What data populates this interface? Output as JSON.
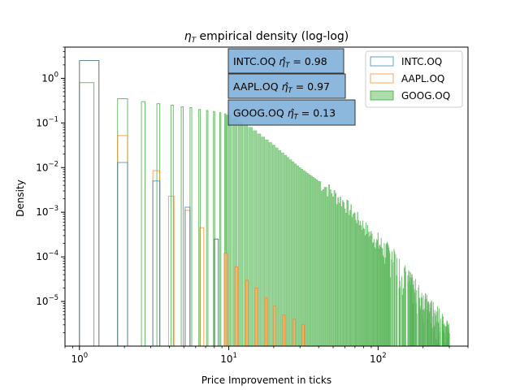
{
  "chart_data": {
    "type": "histogram",
    "title_main": "η",
    "title_sub": "T",
    "title_rest": " empirical density (log-log)",
    "xlabel": "Price Improvement in ticks",
    "ylabel": "Density",
    "xscale": "log",
    "yscale": "log",
    "xlim": [
      0.8,
      400
    ],
    "ylim": [
      1e-06,
      5
    ],
    "x_ticks": [
      {
        "value": 1,
        "base": "10",
        "exp": "0"
      },
      {
        "value": 10,
        "base": "10",
        "exp": "1"
      },
      {
        "value": 100,
        "base": "10",
        "exp": "2"
      }
    ],
    "y_ticks": [
      {
        "value": 1,
        "base": "10",
        "exp": "0"
      },
      {
        "value": 0.1,
        "base": "10",
        "exp": "−1"
      },
      {
        "value": 0.01,
        "base": "10",
        "exp": "−2"
      },
      {
        "value": 0.001,
        "base": "10",
        "exp": "−3"
      },
      {
        "value": 0.0001,
        "base": "10",
        "exp": "−4"
      },
      {
        "value": 1e-05,
        "base": "10",
        "exp": "−5"
      }
    ],
    "grid": false,
    "legend_position": "upper right",
    "series": [
      {
        "name": "INTC.OQ",
        "color": "#1f77b4",
        "style": "step outline",
        "bins": [
          {
            "x0": 1.0,
            "x1": 1.35,
            "y": 2.5
          },
          {
            "x0": 1.8,
            "x1": 2.1,
            "y": 0.013
          },
          {
            "x0": 3.1,
            "x1": 3.45,
            "y": 0.005
          },
          {
            "x0": 5.1,
            "x1": 5.5,
            "y": 0.0013
          },
          {
            "x0": 8.0,
            "x1": 8.5,
            "y": 0.00025
          }
        ]
      },
      {
        "name": "AAPL.OQ",
        "color": "#ff7f0e",
        "style": "step outline",
        "bins": [
          {
            "x0": 1.0,
            "x1": 1.35,
            "y": 2.5
          },
          {
            "x0": 1.8,
            "x1": 2.1,
            "y": 0.052
          },
          {
            "x0": 3.1,
            "x1": 3.45,
            "y": 0.0085
          },
          {
            "x0": 3.95,
            "x1": 4.3,
            "y": 0.0023
          },
          {
            "x0": 5.1,
            "x1": 5.5,
            "y": 0.0011
          },
          {
            "x0": 6.4,
            "x1": 6.8,
            "y": 0.00045
          },
          {
            "x0": 8.0,
            "x1": 8.5,
            "y": 0.00025
          },
          {
            "x0": 9.3,
            "x1": 9.8,
            "y": 0.00012
          },
          {
            "x0": 11.0,
            "x1": 11.5,
            "y": 6e-05
          },
          {
            "x0": 13.0,
            "x1": 13.5,
            "y": 3e-05
          },
          {
            "x0": 15.0,
            "x1": 15.6,
            "y": 2e-05
          },
          {
            "x0": 17.5,
            "x1": 18.1,
            "y": 1.2e-05
          },
          {
            "x0": 20.0,
            "x1": 20.7,
            "y": 8e-06
          },
          {
            "x0": 23.0,
            "x1": 23.8,
            "y": 5e-06
          },
          {
            "x0": 27.0,
            "x1": 27.9,
            "y": 4e-06
          },
          {
            "x0": 31.0,
            "x1": 32.0,
            "y": 3e-06
          }
        ]
      },
      {
        "name": "GOOG.OQ",
        "color": "#2ca02c",
        "style": "filled light bars from x=10 with outlined spikes below",
        "spikes": [
          {
            "x0": 1.0,
            "x1": 1.25,
            "y": 0.8
          },
          {
            "x0": 1.8,
            "x1": 2.1,
            "y": 0.35
          },
          {
            "x0": 2.6,
            "x1": 2.75,
            "y": 0.3
          },
          {
            "x0": 3.3,
            "x1": 3.45,
            "y": 0.27
          },
          {
            "x0": 4.1,
            "x1": 4.25,
            "y": 0.25
          },
          {
            "x0": 4.8,
            "x1": 4.95,
            "y": 0.23
          },
          {
            "x0": 5.5,
            "x1": 5.65,
            "y": 0.22
          },
          {
            "x0": 6.3,
            "x1": 6.45,
            "y": 0.2
          },
          {
            "x0": 7.1,
            "x1": 7.25,
            "y": 0.19
          },
          {
            "x0": 7.9,
            "x1": 8.05,
            "y": 0.18
          },
          {
            "x0": 8.7,
            "x1": 8.85,
            "y": 0.17
          },
          {
            "x0": 9.4,
            "x1": 9.55,
            "y": 0.16
          }
        ],
        "envelope": [
          [
            10,
            0.15
          ],
          [
            14,
            0.08
          ],
          [
            20,
            0.032
          ],
          [
            30,
            0.01
          ],
          [
            40,
            0.005
          ],
          [
            60,
            0.0016
          ],
          [
            80,
            0.0005
          ],
          [
            100,
            0.0002
          ],
          [
            130,
            8e-05
          ],
          [
            160,
            3e-05
          ],
          [
            200,
            1e-05
          ],
          [
            240,
            5e-06
          ],
          [
            280,
            3e-06
          ],
          [
            300,
            2e-06
          ]
        ],
        "x_end": 300
      }
    ],
    "annotations": [
      {
        "name": "INTC.OQ",
        "value": "0.98"
      },
      {
        "name": "AAPL.OQ",
        "value": "0.97"
      },
      {
        "name": "GOOG.OQ",
        "value": "0.13"
      }
    ]
  }
}
